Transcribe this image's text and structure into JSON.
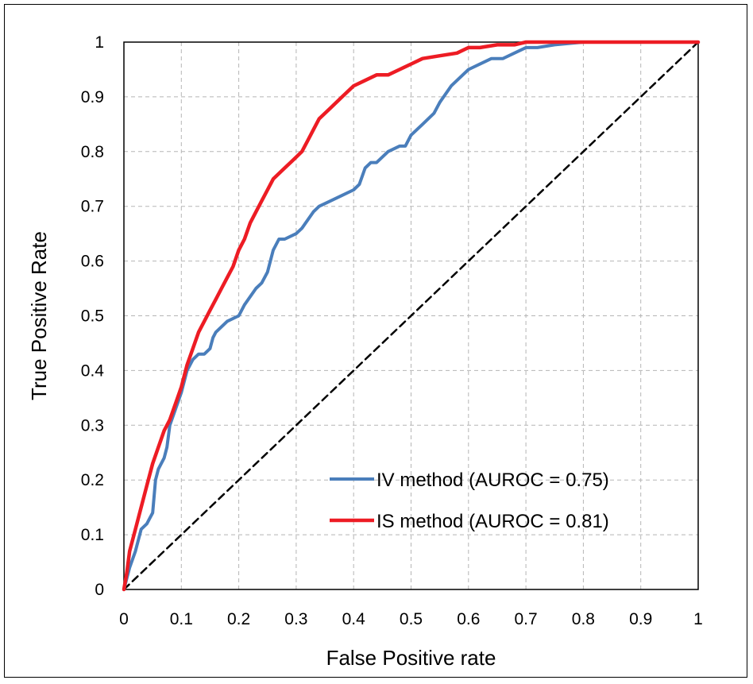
{
  "chart_data": {
    "type": "line",
    "title": "",
    "xlabel": "False Positive rate",
    "ylabel": "True Positive Rate",
    "xlim": [
      0,
      1
    ],
    "ylim": [
      0,
      1
    ],
    "x_ticks": [
      "0",
      "0.1",
      "0.2",
      "0.3",
      "0.4",
      "0.5",
      "0.6",
      "0.7",
      "0.8",
      "0.9",
      "1"
    ],
    "y_ticks": [
      "0",
      "0.1",
      "0.2",
      "0.3",
      "0.4",
      "0.5",
      "0.6",
      "0.7",
      "0.8",
      "0.9",
      "1"
    ],
    "grid": true,
    "legend_position": "bottom-right",
    "series": [
      {
        "name": "IV method (AUROC = 0.75)",
        "color": "#4a7ebb",
        "x": [
          0,
          0.01,
          0.02,
          0.03,
          0.04,
          0.045,
          0.05,
          0.055,
          0.06,
          0.07,
          0.075,
          0.08,
          0.09,
          0.1,
          0.11,
          0.12,
          0.13,
          0.14,
          0.15,
          0.155,
          0.16,
          0.18,
          0.2,
          0.21,
          0.23,
          0.24,
          0.25,
          0.26,
          0.27,
          0.28,
          0.3,
          0.31,
          0.33,
          0.34,
          0.36,
          0.38,
          0.4,
          0.41,
          0.42,
          0.43,
          0.44,
          0.46,
          0.48,
          0.49,
          0.5,
          0.52,
          0.54,
          0.55,
          0.57,
          0.59,
          0.6,
          0.62,
          0.64,
          0.66,
          0.68,
          0.7,
          0.72,
          0.75,
          0.8,
          0.85,
          0.9,
          1
        ],
        "y": [
          0,
          0.04,
          0.07,
          0.11,
          0.12,
          0.13,
          0.14,
          0.2,
          0.22,
          0.24,
          0.26,
          0.3,
          0.33,
          0.36,
          0.4,
          0.42,
          0.43,
          0.43,
          0.44,
          0.46,
          0.47,
          0.49,
          0.5,
          0.52,
          0.55,
          0.56,
          0.58,
          0.62,
          0.64,
          0.64,
          0.65,
          0.66,
          0.69,
          0.7,
          0.71,
          0.72,
          0.73,
          0.74,
          0.77,
          0.78,
          0.78,
          0.8,
          0.81,
          0.81,
          0.83,
          0.85,
          0.87,
          0.89,
          0.92,
          0.94,
          0.95,
          0.96,
          0.97,
          0.97,
          0.98,
          0.99,
          0.99,
          0.995,
          1,
          1,
          1,
          1
        ]
      },
      {
        "name": "IS method (AUROC = 0.81)",
        "color": "#ed1c24",
        "x": [
          0,
          0.005,
          0.01,
          0.02,
          0.03,
          0.04,
          0.05,
          0.06,
          0.07,
          0.08,
          0.09,
          0.1,
          0.11,
          0.12,
          0.13,
          0.14,
          0.15,
          0.16,
          0.17,
          0.18,
          0.19,
          0.2,
          0.21,
          0.22,
          0.23,
          0.24,
          0.25,
          0.26,
          0.27,
          0.28,
          0.29,
          0.3,
          0.31,
          0.32,
          0.33,
          0.34,
          0.36,
          0.38,
          0.4,
          0.42,
          0.44,
          0.46,
          0.48,
          0.5,
          0.52,
          0.55,
          0.58,
          0.6,
          0.62,
          0.65,
          0.68,
          0.7,
          0.72,
          0.75,
          0.8,
          0.9,
          1
        ],
        "y": [
          0,
          0.03,
          0.07,
          0.11,
          0.15,
          0.19,
          0.23,
          0.26,
          0.29,
          0.31,
          0.34,
          0.37,
          0.41,
          0.44,
          0.47,
          0.49,
          0.51,
          0.53,
          0.55,
          0.57,
          0.59,
          0.62,
          0.64,
          0.67,
          0.69,
          0.71,
          0.73,
          0.75,
          0.76,
          0.77,
          0.78,
          0.79,
          0.8,
          0.82,
          0.84,
          0.86,
          0.88,
          0.9,
          0.92,
          0.93,
          0.94,
          0.94,
          0.95,
          0.96,
          0.97,
          0.975,
          0.98,
          0.99,
          0.99,
          0.995,
          0.995,
          1,
          1,
          1,
          1,
          1,
          1
        ]
      },
      {
        "name": "",
        "color": "#000000",
        "style": "dashed",
        "x": [
          0,
          1
        ],
        "y": [
          0,
          1
        ]
      }
    ]
  }
}
